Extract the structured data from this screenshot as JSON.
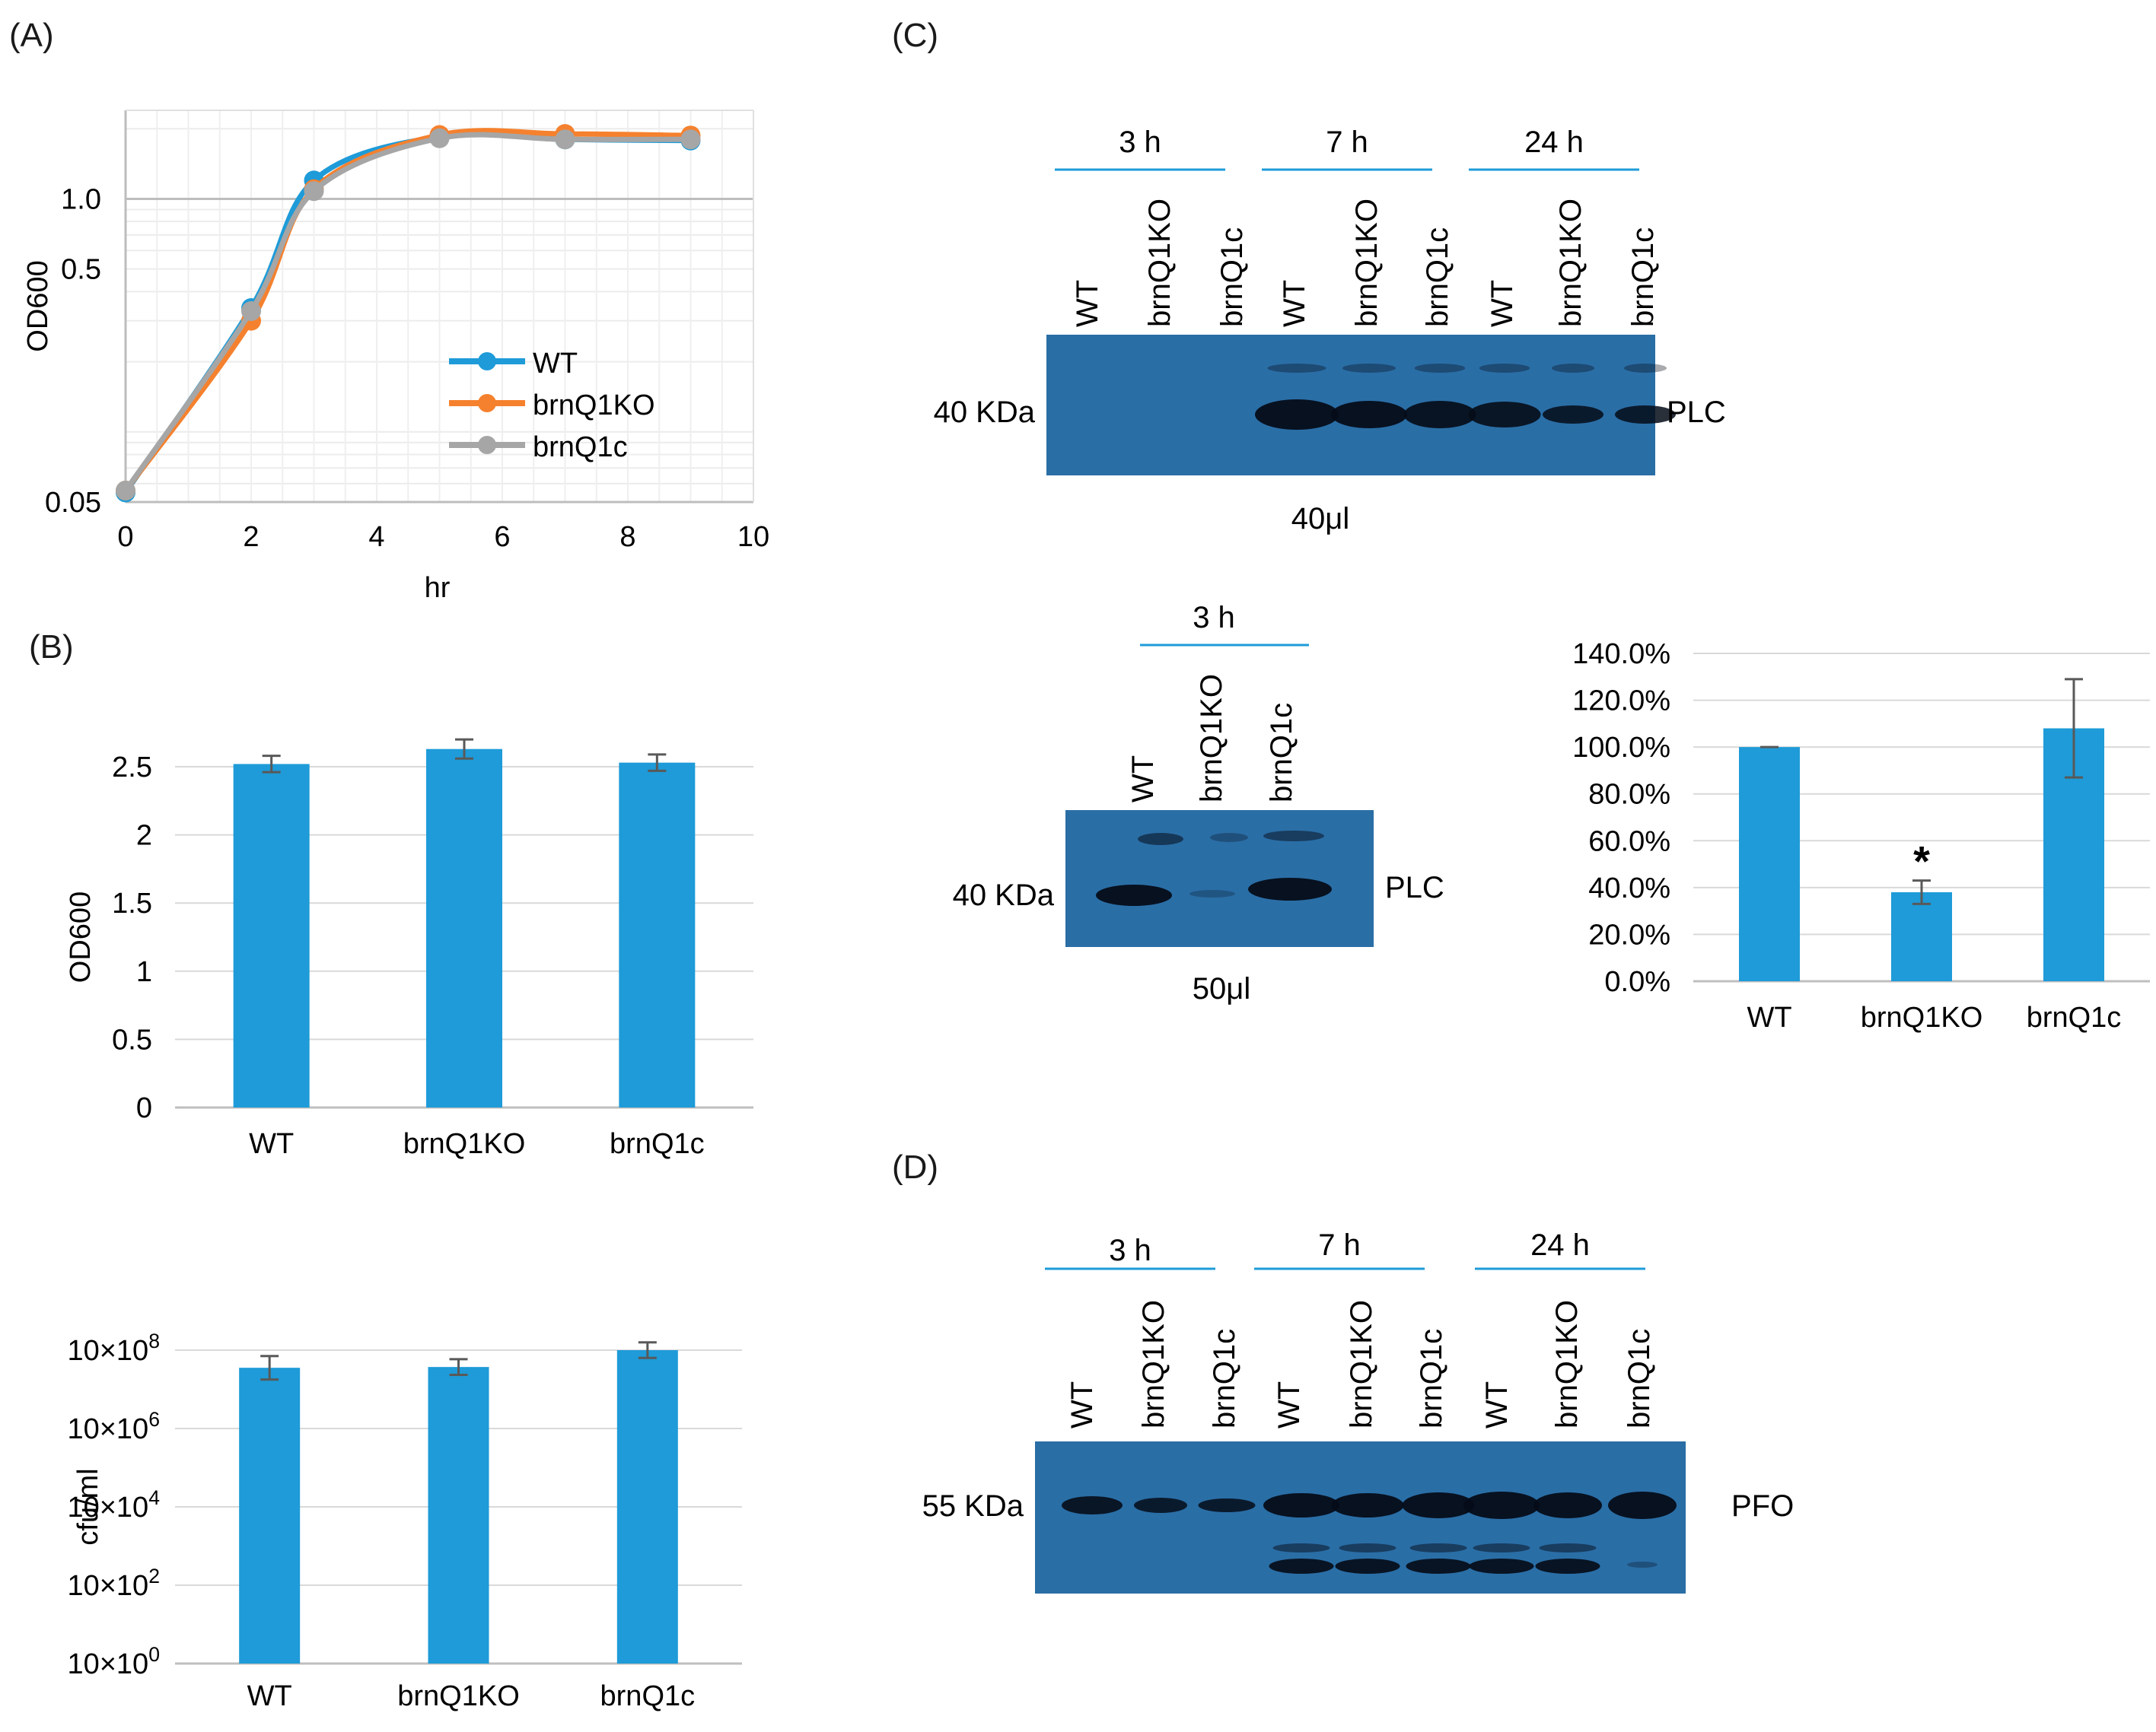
{
  "panel_labels": {
    "A": "(A)",
    "B": "(B)",
    "C": "(C)",
    "D": "(D)"
  },
  "colors": {
    "wt": "#1e9bd8",
    "ko": "#f5812e",
    "comp": "#a6a6a6",
    "bar": "#1e9bd8",
    "blot_bg": "#2a6ea6",
    "band": "#050c18"
  },
  "chart_data": [
    {
      "id": "A",
      "type": "line",
      "title": "",
      "xlabel": "hr",
      "ylabel": "OD600",
      "xlim": [
        0,
        10
      ],
      "yscale": "log",
      "ylim": [
        0.05,
        2.4
      ],
      "xticks": [
        "0",
        "2",
        "4",
        "6",
        "8",
        "10"
      ],
      "yticks": [
        {
          "v": 1.0,
          "label": "1.0"
        },
        {
          "v": 0.5,
          "label": "0.5"
        },
        {
          "v": 0.05,
          "label": "0.05"
        }
      ],
      "legend": "center-right",
      "x": [
        0,
        2,
        3,
        5,
        7,
        9
      ],
      "series": [
        {
          "name": "WT",
          "values": [
            0.055,
            0.34,
            1.2,
            1.85,
            1.8,
            1.78
          ]
        },
        {
          "name": "brnQ1KO",
          "values": [
            0.056,
            0.3,
            1.1,
            1.88,
            1.9,
            1.87
          ]
        },
        {
          "name": "brnQ1c",
          "values": [
            0.056,
            0.33,
            1.08,
            1.82,
            1.8,
            1.8
          ]
        }
      ]
    },
    {
      "id": "B1",
      "type": "bar",
      "ylabel": "OD600",
      "ylim": [
        0,
        2.5
      ],
      "yticks": [
        "0",
        "0.5",
        "1",
        "1.5",
        "2",
        "2.5"
      ],
      "categories": [
        "WT",
        "brnQ1KO",
        "brnQ1c"
      ],
      "values": [
        2.52,
        2.63,
        2.53
      ],
      "errors": [
        0.06,
        0.07,
        0.06
      ]
    },
    {
      "id": "B2",
      "type": "bar",
      "ylabel": "cfu/ml",
      "yscale": "log",
      "ylim_log10": [
        0,
        8
      ],
      "yticks": [
        {
          "base": "10×10",
          "exp": "8"
        },
        {
          "base": "10×10",
          "exp": "6"
        },
        {
          "base": "10×10",
          "exp": "4"
        },
        {
          "base": "10×10",
          "exp": "2"
        },
        {
          "base": "10×10",
          "exp": "0"
        }
      ],
      "categories": [
        "WT",
        "brnQ1KO",
        "brnQ1c"
      ],
      "log10_values": [
        7.55,
        7.57,
        8.0
      ],
      "log10_errors": [
        0.3,
        0.2,
        0.2
      ]
    },
    {
      "id": "C-quant",
      "type": "bar",
      "ylim": [
        0,
        140
      ],
      "yticks": [
        "0.0%",
        "20.0%",
        "40.0%",
        "60.0%",
        "80.0%",
        "100.0%",
        "120.0%",
        "140.0%"
      ],
      "categories": [
        "WT",
        "brnQ1KO",
        "brnQ1c"
      ],
      "values": [
        100,
        38,
        108
      ],
      "errors": [
        0,
        5,
        21
      ],
      "annotation": "*"
    }
  ],
  "blot_C_top": {
    "times": [
      "3 h",
      "7 h",
      "24 h"
    ],
    "lanes": [
      "WT",
      "brnQ1KO",
      "brnQ1c",
      "WT",
      "brnQ1KO",
      "brnQ1c",
      "WT",
      "brnQ1KO",
      "brnQ1c"
    ],
    "marker": "40 KDa",
    "target": "PLC",
    "volume": "40μl"
  },
  "blot_C_bottom": {
    "time": "3 h",
    "lanes": [
      "WT",
      "brnQ1KO",
      "brnQ1c"
    ],
    "marker": "40 KDa",
    "target": "PLC",
    "volume": "50μl"
  },
  "blot_D": {
    "times": [
      "3 h",
      "7 h",
      "24 h"
    ],
    "lanes": [
      "WT",
      "brnQ1KO",
      "brnQ1c",
      "WT",
      "brnQ1KO",
      "brnQ1c",
      "WT",
      "brnQ1KO",
      "brnQ1c"
    ],
    "marker": "55 KDa",
    "target": "PFO"
  }
}
